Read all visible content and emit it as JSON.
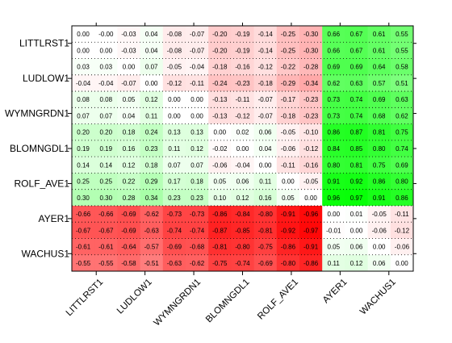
{
  "chart_data": {
    "type": "heatmap",
    "title": "",
    "xlabel": "",
    "ylabel": "",
    "x_tick_labels": [
      "LITTLRST1",
      "LUDLOW1",
      "WYMNGRDN1",
      "BLOMNGDL1",
      "ROLF_AVE1",
      "AYER1",
      "WACHUS1"
    ],
    "y_tick_labels": [
      "LITTLRST1",
      "LUDLOW1",
      "WYMNGRDN1",
      "BLOMNGDL1",
      "ROLF_AVE1",
      "AYER1",
      "WACHUS1"
    ],
    "color_scale": {
      "negative": "#ff0000",
      "zero": "#ffffff",
      "positive": "#00ff00",
      "range": [
        -1,
        1
      ]
    },
    "cells": [
      [
        "0.00",
        "-0.00",
        "-0.03",
        "0.04",
        "-0.08",
        "-0.07",
        "-0.20",
        "-0.19",
        "-0.14",
        "-0.25",
        "-0.30",
        "0.66",
        "0.67",
        "0.61",
        "0.55"
      ],
      [
        "0.00",
        "0.00",
        "-0.03",
        "0.04",
        "-0.08",
        "-0.07",
        "-0.20",
        "-0.19",
        "-0.14",
        "-0.25",
        "-0.30",
        "0.66",
        "0.67",
        "0.61",
        "0.55"
      ],
      [
        "0.03",
        "0.03",
        "0.00",
        "0.07",
        "-0.05",
        "-0.04",
        "-0.18",
        "-0.16",
        "-0.12",
        "-0.22",
        "-0.28",
        "0.69",
        "0.69",
        "0.64",
        "0.58"
      ],
      [
        "-0.04",
        "-0.04",
        "-0.07",
        "0.00",
        "-0.12",
        "-0.11",
        "-0.24",
        "-0.23",
        "-0.18",
        "-0.29",
        "-0.34",
        "0.62",
        "0.63",
        "0.57",
        "0.51"
      ],
      [
        "0.08",
        "0.08",
        "0.05",
        "0.12",
        "0.00",
        "0.00",
        "-0.13",
        "-0.11",
        "-0.07",
        "-0.17",
        "-0.23",
        "0.73",
        "0.74",
        "0.69",
        "0.63"
      ],
      [
        "0.07",
        "0.07",
        "0.04",
        "0.11",
        "0.00",
        "0.00",
        "-0.13",
        "-0.12",
        "-0.07",
        "-0.18",
        "-0.23",
        "0.73",
        "0.74",
        "0.68",
        "0.62"
      ],
      [
        "0.20",
        "0.20",
        "0.18",
        "0.24",
        "0.13",
        "0.13",
        "0.00",
        "0.02",
        "0.06",
        "-0.05",
        "-0.10",
        "0.86",
        "0.87",
        "0.81",
        "0.75"
      ],
      [
        "0.19",
        "0.19",
        "0.16",
        "0.23",
        "0.11",
        "0.12",
        "-0.02",
        "0.00",
        "0.04",
        "-0.06",
        "-0.12",
        "0.84",
        "0.85",
        "0.80",
        "0.74"
      ],
      [
        "0.14",
        "0.14",
        "0.12",
        "0.18",
        "0.07",
        "0.07",
        "-0.06",
        "-0.04",
        "0.00",
        "-0.11",
        "-0.16",
        "0.80",
        "0.81",
        "0.75",
        "0.69"
      ],
      [
        "0.25",
        "0.25",
        "0.22",
        "0.29",
        "0.17",
        "0.18",
        "0.05",
        "0.06",
        "0.11",
        "0.00",
        "-0.05",
        "0.91",
        "0.92",
        "0.86",
        "0.80"
      ],
      [
        "0.30",
        "0.30",
        "0.28",
        "0.34",
        "0.23",
        "0.23",
        "0.10",
        "0.12",
        "0.16",
        "0.05",
        "0.00",
        "0.96",
        "0.97",
        "0.91",
        "0.86"
      ],
      [
        "-0.66",
        "-0.66",
        "-0.69",
        "-0.62",
        "-0.73",
        "-0.73",
        "-0.86",
        "-0.84",
        "-0.80",
        "-0.91",
        "-0.96",
        "0.00",
        "0.01",
        "-0.05",
        "-0.11"
      ],
      [
        "-0.67",
        "-0.67",
        "-0.69",
        "-0.63",
        "-0.74",
        "-0.74",
        "-0.87",
        "-0.85",
        "-0.81",
        "-0.92",
        "-0.97",
        "-0.01",
        "0.00",
        "-0.06",
        "-0.12"
      ],
      [
        "-0.61",
        "-0.61",
        "-0.64",
        "-0.57",
        "-0.69",
        "-0.68",
        "-0.81",
        "-0.80",
        "-0.75",
        "-0.86",
        "-0.91",
        "0.05",
        "0.06",
        "0.00",
        "-0.06"
      ],
      [
        "-0.55",
        "-0.55",
        "-0.58",
        "-0.51",
        "-0.63",
        "-0.62",
        "-0.75",
        "-0.74",
        "-0.69",
        "-0.80",
        "-0.86",
        "0.11",
        "0.12",
        "0.06",
        "0.00"
      ]
    ]
  }
}
